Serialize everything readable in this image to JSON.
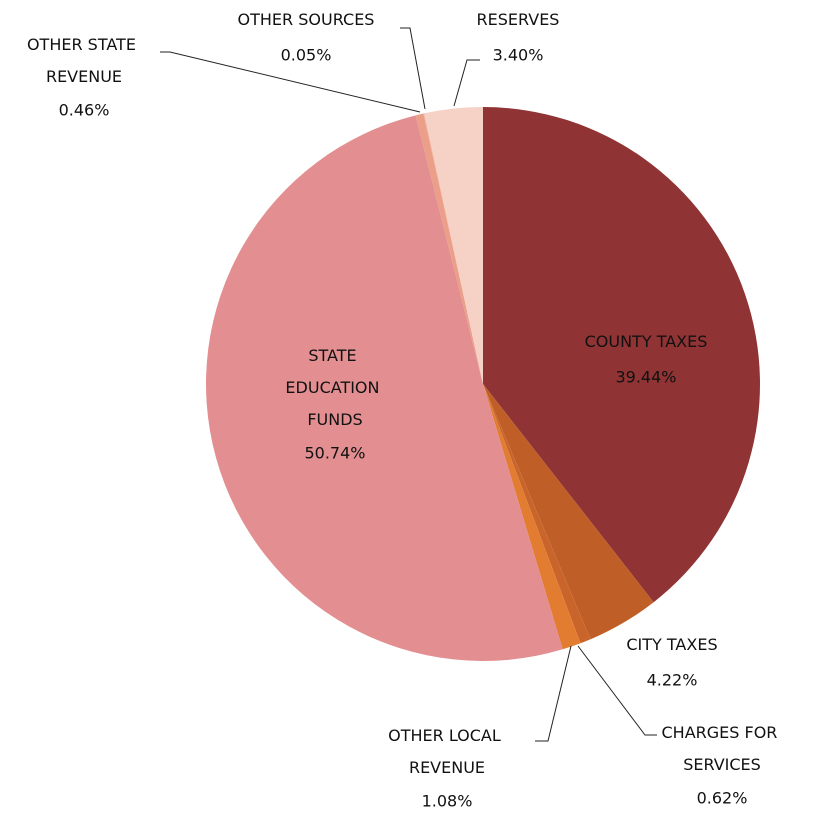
{
  "chart_data": {
    "type": "pie",
    "categories": [
      "COUNTY TAXES",
      "CITY TAXES",
      "CHARGES FOR SERVICES",
      "OTHER LOCAL REVENUE",
      "STATE EDUCATION FUNDS",
      "OTHER STATE REVENUE",
      "OTHER SOURCES",
      "RESERVES"
    ],
    "values": [
      39.44,
      4.22,
      0.62,
      1.08,
      50.74,
      0.46,
      0.05,
      3.4
    ],
    "value_labels": [
      "39.44%",
      "4.22%",
      "0.62%",
      "1.08%",
      "50.74%",
      "0.46%",
      "0.05%",
      "3.40%"
    ],
    "colors": [
      "#8f3334",
      "#bf5f27",
      "#c9652b",
      "#e27c30",
      "#e38f91",
      "#eb9e88",
      "#f1b49f",
      "#f6d1c6"
    ]
  }
}
